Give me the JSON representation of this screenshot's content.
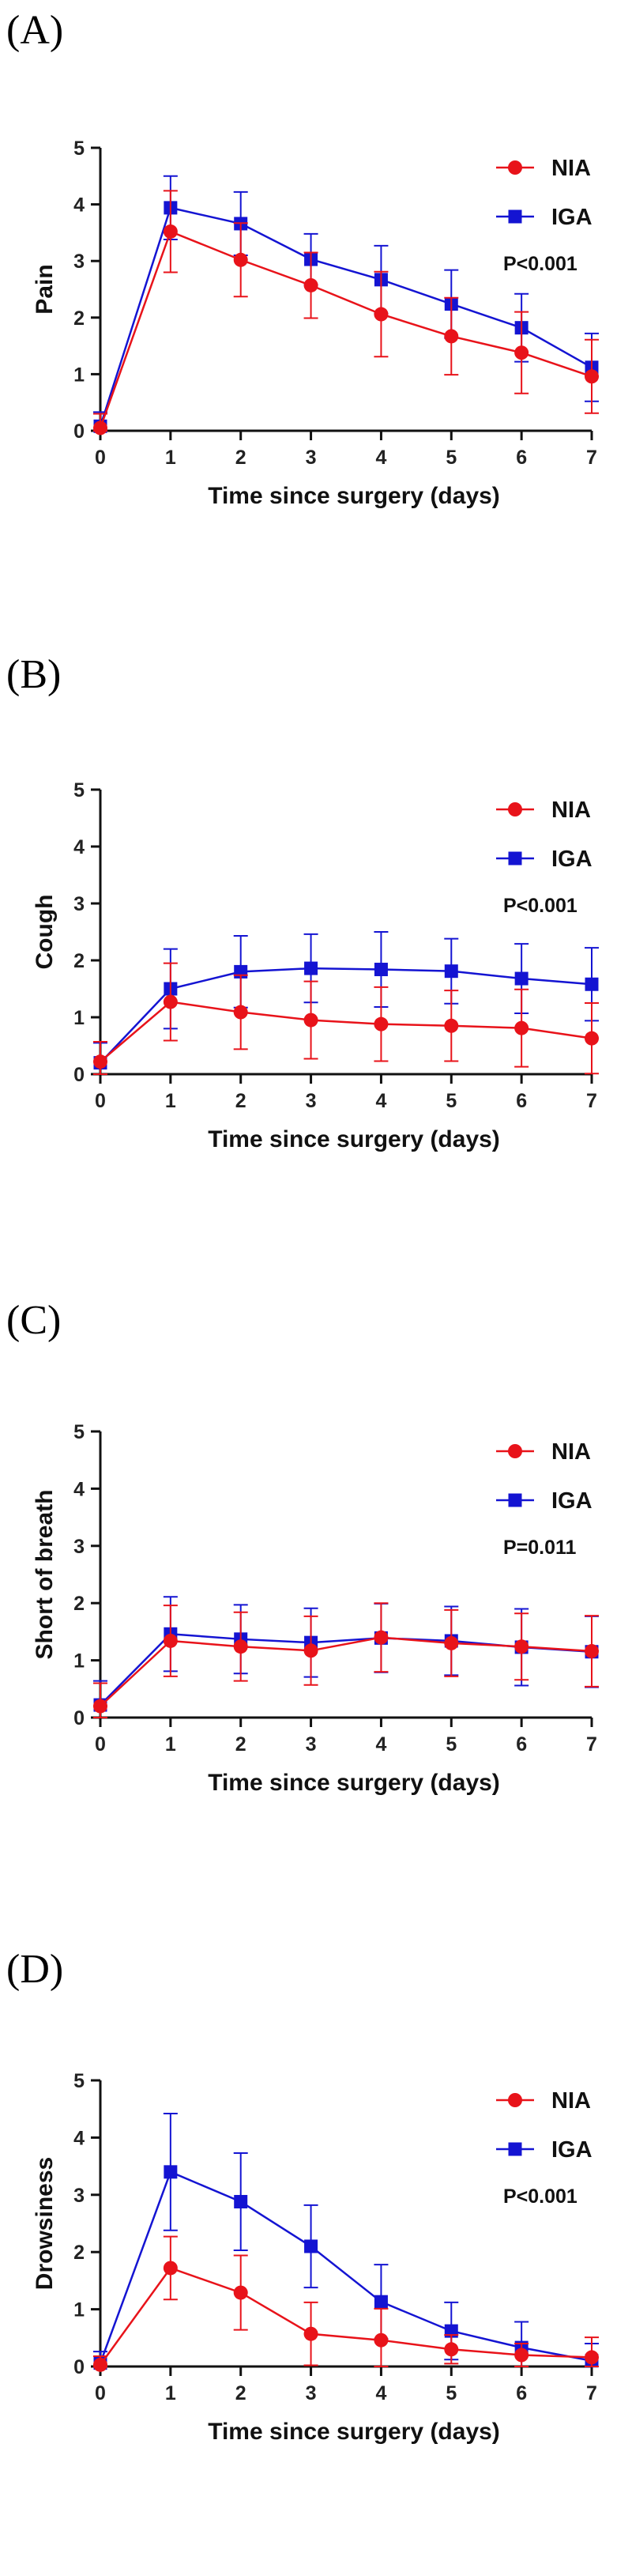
{
  "colors": {
    "NIA": "#e8131a",
    "IGA": "#1414d2",
    "axis": "#111111"
  },
  "chart_data": [
    {
      "panel": "(A)",
      "type": "line",
      "xlabel": "Time since surgery (days)",
      "ylabel": "Pain",
      "x": [
        0,
        1,
        2,
        3,
        4,
        5,
        6,
        7
      ],
      "xlim": [
        0,
        7
      ],
      "ylim": [
        0,
        5
      ],
      "xticks": [
        "0",
        "1",
        "2",
        "3",
        "4",
        "5",
        "6",
        "7"
      ],
      "yticks": [
        "0",
        "1",
        "2",
        "3",
        "4",
        "5"
      ],
      "annotation": "P<0.001",
      "legend_position": "top-right",
      "series": [
        {
          "name": "NIA",
          "marker": "circle",
          "values": [
            0.05,
            3.52,
            3.02,
            2.57,
            2.06,
            1.67,
            1.38,
            0.96
          ],
          "errors": [
            0.25,
            0.72,
            0.65,
            0.58,
            0.75,
            0.68,
            0.72,
            0.65
          ]
        },
        {
          "name": "IGA",
          "marker": "square",
          "values": [
            0.08,
            3.94,
            3.66,
            3.03,
            2.67,
            2.24,
            1.82,
            1.12
          ],
          "errors": [
            0.25,
            0.56,
            0.56,
            0.45,
            0.6,
            0.6,
            0.6,
            0.6
          ]
        }
      ]
    },
    {
      "panel": "(B)",
      "type": "line",
      "xlabel": "Time since surgery (days)",
      "ylabel": "Cough",
      "x": [
        0,
        1,
        2,
        3,
        4,
        5,
        6,
        7
      ],
      "xlim": [
        0,
        7
      ],
      "ylim": [
        0,
        5
      ],
      "xticks": [
        "0",
        "1",
        "2",
        "3",
        "4",
        "5",
        "6",
        "7"
      ],
      "yticks": [
        "0",
        "1",
        "2",
        "3",
        "4",
        "5"
      ],
      "annotation": "P<0.001",
      "legend_position": "top-right",
      "series": [
        {
          "name": "NIA",
          "marker": "circle",
          "values": [
            0.22,
            1.27,
            1.09,
            0.95,
            0.88,
            0.85,
            0.81,
            0.63
          ],
          "errors": [
            0.35,
            0.68,
            0.65,
            0.68,
            0.65,
            0.62,
            0.68,
            0.62
          ]
        },
        {
          "name": "IGA",
          "marker": "square",
          "values": [
            0.2,
            1.5,
            1.8,
            1.86,
            1.84,
            1.81,
            1.68,
            1.58
          ],
          "errors": [
            0.35,
            0.7,
            0.63,
            0.6,
            0.66,
            0.57,
            0.61,
            0.64
          ]
        }
      ]
    },
    {
      "panel": "(C)",
      "type": "line",
      "xlabel": "Time since surgery (days)",
      "ylabel": "Short of breath",
      "x": [
        0,
        1,
        2,
        3,
        4,
        5,
        6,
        7
      ],
      "xlim": [
        0,
        7
      ],
      "ylim": [
        0,
        5
      ],
      "xticks": [
        "0",
        "1",
        "2",
        "3",
        "4",
        "5",
        "6",
        "7"
      ],
      "yticks": [
        "0",
        "1",
        "2",
        "3",
        "4",
        "5"
      ],
      "annotation": "P=0.011",
      "legend_position": "top-right",
      "series": [
        {
          "name": "NIA",
          "marker": "circle",
          "values": [
            0.2,
            1.34,
            1.24,
            1.17,
            1.4,
            1.3,
            1.24,
            1.16
          ],
          "errors": [
            0.4,
            0.62,
            0.6,
            0.6,
            0.6,
            0.58,
            0.58,
            0.62
          ]
        },
        {
          "name": "IGA",
          "marker": "square",
          "values": [
            0.22,
            1.46,
            1.37,
            1.31,
            1.39,
            1.34,
            1.23,
            1.15
          ],
          "errors": [
            0.42,
            0.65,
            0.6,
            0.6,
            0.6,
            0.6,
            0.67,
            0.62
          ]
        }
      ]
    },
    {
      "panel": "(D)",
      "type": "line",
      "xlabel": "Time since surgery (days)",
      "ylabel": "Drowsiness",
      "x": [
        0,
        1,
        2,
        3,
        4,
        5,
        6,
        7
      ],
      "xlim": [
        0,
        7
      ],
      "ylim": [
        0,
        5
      ],
      "xticks": [
        "0",
        "1",
        "2",
        "3",
        "4",
        "5",
        "6",
        "7"
      ],
      "yticks": [
        "0",
        "1",
        "2",
        "3",
        "4",
        "5"
      ],
      "annotation": "P<0.001",
      "legend_position": "top-right",
      "series": [
        {
          "name": "NIA",
          "marker": "circle",
          "values": [
            0.03,
            1.72,
            1.29,
            0.57,
            0.46,
            0.3,
            0.2,
            0.16
          ],
          "errors": [
            0.15,
            0.55,
            0.65,
            0.55,
            0.55,
            0.25,
            0.2,
            0.35
          ]
        },
        {
          "name": "IGA",
          "marker": "square",
          "values": [
            0.06,
            3.4,
            2.88,
            2.1,
            1.13,
            0.62,
            0.33,
            0.1
          ],
          "errors": [
            0.2,
            1.02,
            0.85,
            0.72,
            0.65,
            0.5,
            0.45,
            0.3
          ]
        }
      ]
    }
  ]
}
